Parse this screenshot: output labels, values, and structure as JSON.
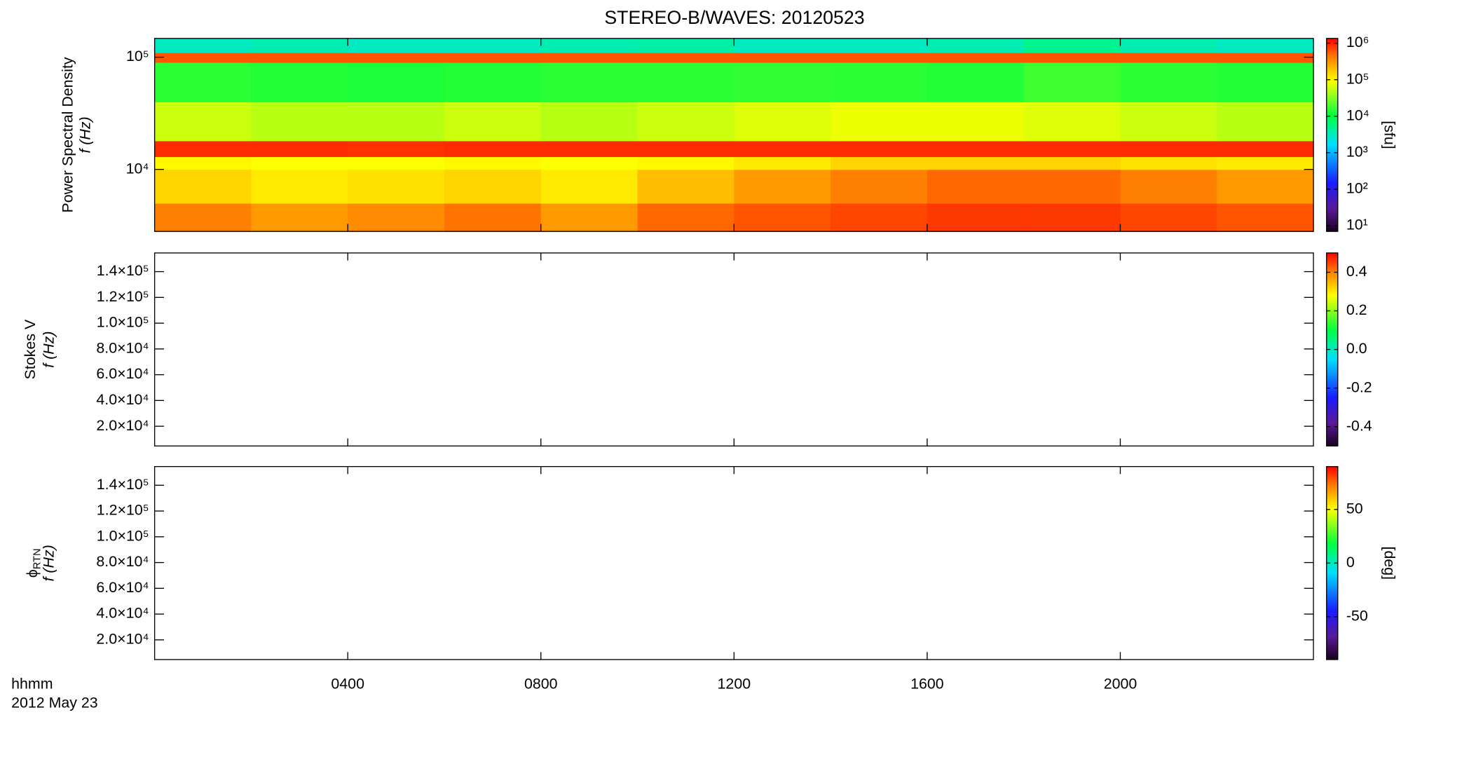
{
  "title": "STEREO-B/WAVES: 20120523",
  "x_axis": {
    "xlim": [
      0,
      24
    ],
    "xticks": [
      {
        "value": 4,
        "label": "0400"
      },
      {
        "value": 8,
        "label": "0800"
      },
      {
        "value": 12,
        "label": "1200"
      },
      {
        "value": 16,
        "label": "1600"
      },
      {
        "value": 20,
        "label": "2000"
      }
    ],
    "label": "hhmm",
    "date": "2012 May 23"
  },
  "chart_data": [
    {
      "type": "heatmap",
      "ylabel": "Power Spectral Density",
      "ylabel2": "f (Hz)",
      "log_y": true,
      "log_color": true,
      "ylim": [
        2800,
        147000
      ],
      "yticks": [
        {
          "value": 10000,
          "label": "10⁴"
        },
        {
          "value": 100000,
          "label": "10⁵"
        }
      ],
      "clim": [
        7,
        1350000
      ],
      "cticks": [
        {
          "value": 10,
          "label": "10¹"
        },
        {
          "value": 100,
          "label": "10²"
        },
        {
          "value": 1000,
          "label": "10³"
        },
        {
          "value": 10000,
          "label": "10⁴"
        },
        {
          "value": 100000,
          "label": "10⁵"
        },
        {
          "value": 1000000,
          "label": "10⁶"
        }
      ],
      "clabel": "[sfu]",
      "x_bins": [
        0,
        2,
        4,
        6,
        8,
        10,
        12,
        14,
        16,
        18,
        20,
        22,
        24
      ],
      "y_bins": [
        2800,
        5000,
        10000,
        13000,
        18000,
        40000,
        90000,
        110000,
        147000
      ],
      "z": [
        [
          400000,
          300000,
          350000,
          450000,
          300000,
          500000,
          600000,
          700000,
          800000,
          800000,
          700000,
          600000
        ],
        [
          150000,
          120000,
          130000,
          150000,
          120000,
          200000,
          300000,
          400000,
          500000,
          500000,
          400000,
          300000
        ],
        [
          100000,
          90000,
          90000,
          100000,
          90000,
          100000,
          120000,
          150000,
          150000,
          150000,
          130000,
          120000
        ],
        [
          900000,
          900000,
          850000,
          900000,
          900000,
          900000,
          900000,
          900000,
          900000,
          900000,
          900000,
          900000
        ],
        [
          60000,
          50000,
          50000,
          60000,
          50000,
          60000,
          70000,
          80000,
          80000,
          70000,
          60000,
          50000
        ],
        [
          15000,
          14000,
          13000,
          14000,
          15000,
          15000,
          16000,
          15000,
          14000,
          18000,
          15000,
          14000
        ],
        [
          600000,
          600000,
          600000,
          600000,
          600000,
          600000,
          600000,
          600000,
          600000,
          600000,
          600000,
          600000
        ],
        [
          3000,
          3500,
          3000,
          3000,
          3500,
          4000,
          3000,
          3000,
          3500,
          5000,
          3500,
          3000
        ]
      ]
    },
    {
      "type": "heatmap",
      "ylabel": "Stokes V",
      "ylabel2": "f (Hz)",
      "ylim": [
        4700,
        154500
      ],
      "yticks": [
        {
          "value": 20000,
          "label": "2.0×10⁴"
        },
        {
          "value": 40000,
          "label": "4.0×10⁴"
        },
        {
          "value": 60000,
          "label": "6.0×10⁴"
        },
        {
          "value": 80000,
          "label": "8.0×10⁴"
        },
        {
          "value": 100000,
          "label": "1.0×10⁵"
        },
        {
          "value": 120000,
          "label": "1.2×10⁵"
        },
        {
          "value": 140000,
          "label": "1.4×10⁵"
        }
      ],
      "clim": [
        -0.5,
        0.5
      ],
      "cticks": [
        -0.4,
        -0.2,
        {
          "value": 0,
          "label": "0.0"
        },
        0.2,
        0.4
      ]
    },
    {
      "type": "heatmap",
      "ylabel": "ϕ",
      "ylabel_sub": "RTN",
      "ylabel2": "f (Hz)",
      "ylim": [
        4700,
        154500
      ],
      "yticks": [
        {
          "value": 20000,
          "label": "2.0×10⁴"
        },
        {
          "value": 40000,
          "label": "4.0×10⁴"
        },
        {
          "value": 60000,
          "label": "6.0×10⁴"
        },
        {
          "value": 80000,
          "label": "8.0×10⁴"
        },
        {
          "value": 100000,
          "label": "1.0×10⁵"
        },
        {
          "value": 120000,
          "label": "1.2×10⁵"
        },
        {
          "value": 140000,
          "label": "1.4×10⁵"
        }
      ],
      "clim": [
        -90,
        90
      ],
      "cticks": [
        -50,
        0,
        50
      ],
      "clabel": "[deg]"
    }
  ]
}
